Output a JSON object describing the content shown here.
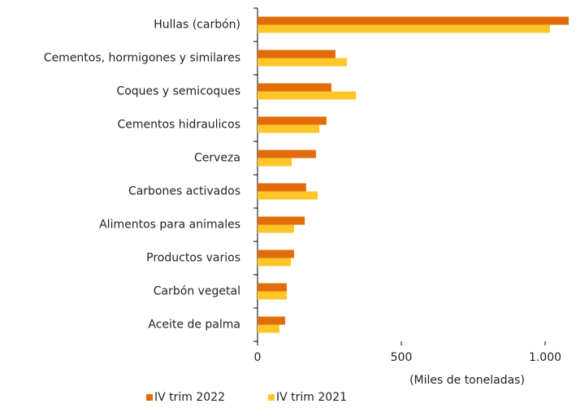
{
  "chart_data": {
    "type": "barh",
    "categories": [
      "Hullas (carbón)",
      "Cementos, hormigones y similares",
      "Coques y semicoques",
      "Cementos hidraulicos",
      "Cerveza",
      "Carbones activados",
      "Alimentos para animales",
      "Productos varios",
      "Carbón vegetal",
      "Aceite de palma"
    ],
    "series": [
      {
        "name": "IV trim 2022",
        "color": "#e36c0a",
        "values": [
          1082,
          271,
          257,
          240,
          203,
          169,
          164,
          127,
          102,
          96
        ]
      },
      {
        "name": "IV trim 2021",
        "color": "#ffc629",
        "values": [
          1017,
          311,
          342,
          215,
          119,
          209,
          127,
          116,
          102,
          76
        ]
      }
    ],
    "x_label": "(Miles de toneladas)",
    "xlim": [
      0,
      1100
    ],
    "xticks": [
      0,
      500,
      {
        "value": 1000,
        "label": "1.000"
      }
    ],
    "legend": "bottom-left"
  }
}
